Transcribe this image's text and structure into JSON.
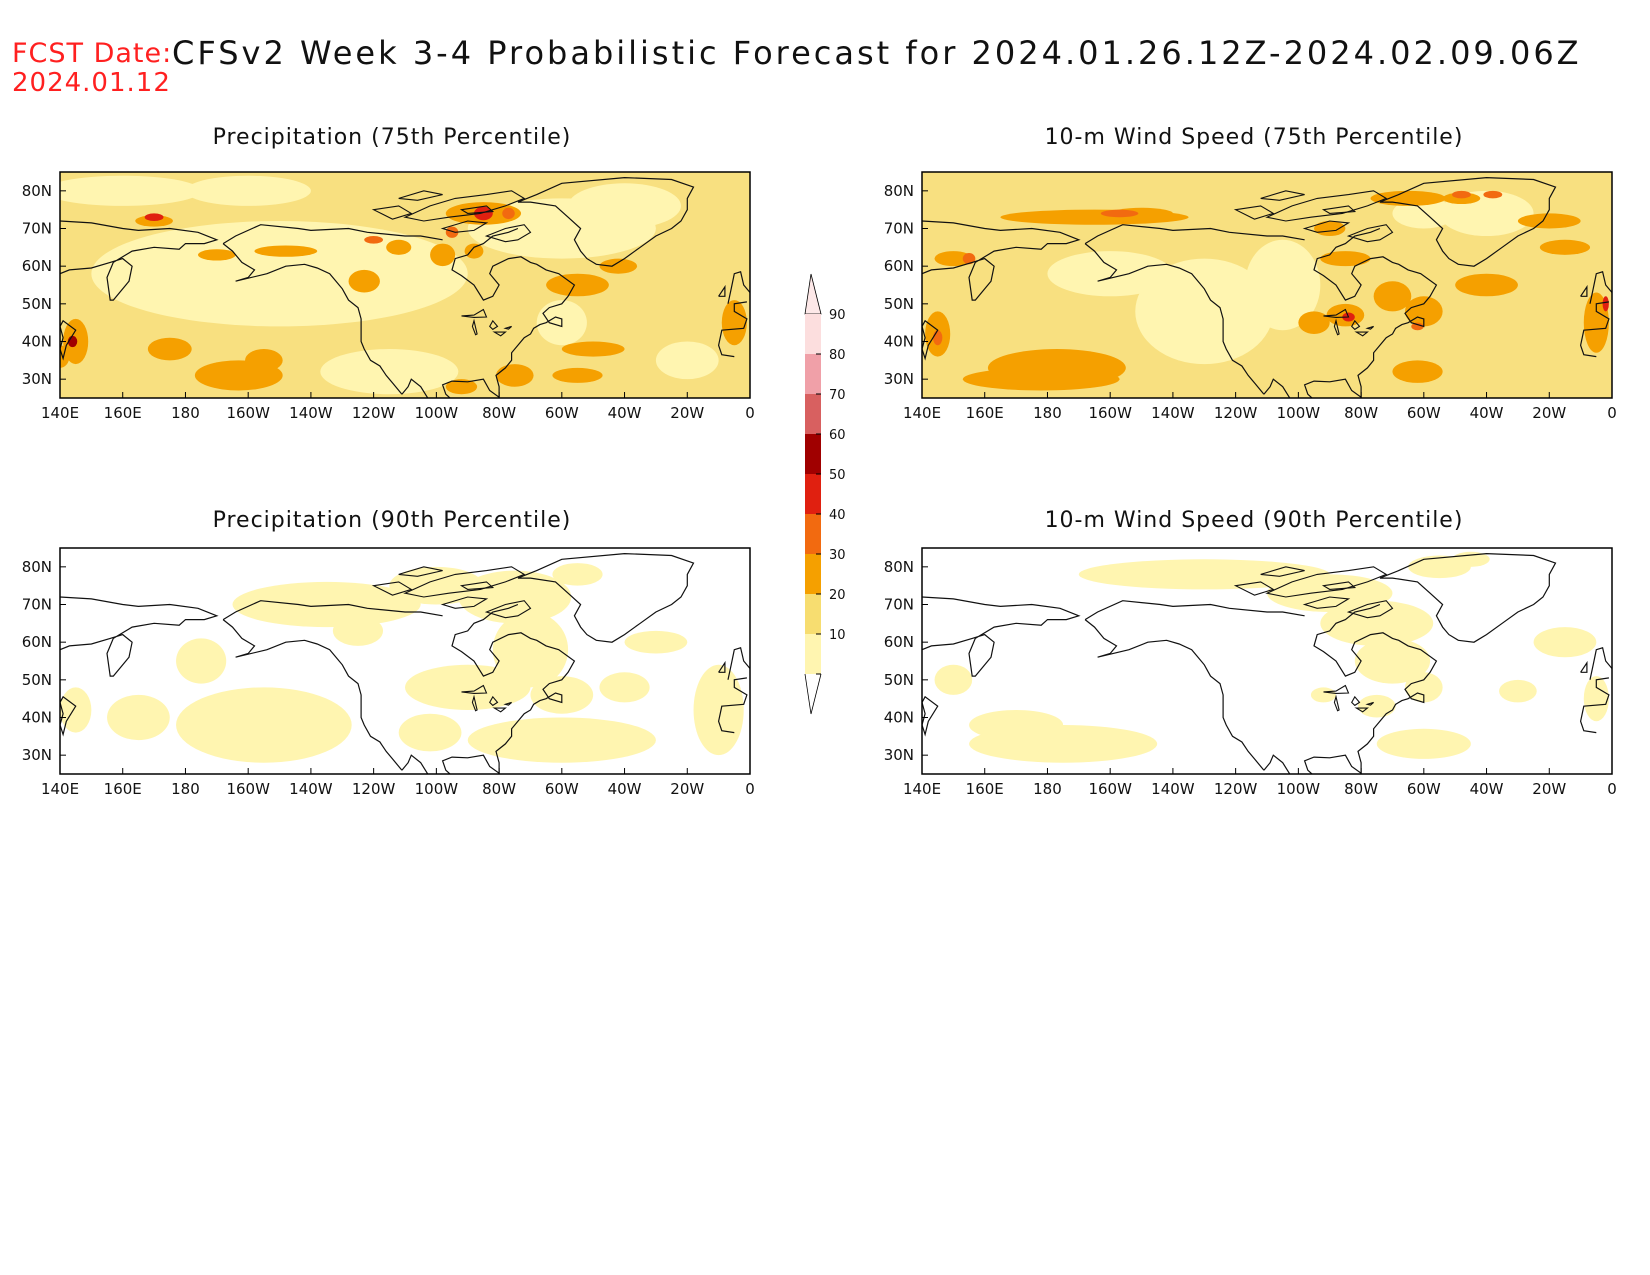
{
  "header": {
    "fcst_label": "FCST Date:",
    "fcst_date": "2024.01.12",
    "title": "CFSv2 Week 3-4 Probabilistic Forecast for 2024.01.26.12Z-2024.02.09.06Z"
  },
  "axes": {
    "lon_labels": [
      "140E",
      "160E",
      "180",
      "160W",
      "140W",
      "120W",
      "100W",
      "80W",
      "60W",
      "40W",
      "20W",
      "0"
    ],
    "lat_labels": [
      "80N",
      "70N",
      "60N",
      "50N",
      "40N",
      "30N"
    ]
  },
  "panels": [
    {
      "id": "precip75",
      "title": "Precipitation (75th Percentile)"
    },
    {
      "id": "wind75",
      "title": "10-m Wind Speed (75th Percentile)"
    },
    {
      "id": "precip90",
      "title": "Precipitation (90th Percentile)"
    },
    {
      "id": "wind90",
      "title": "10-m Wind Speed (90th Percentile)"
    }
  ],
  "colorbar": {
    "levels": [
      "90",
      "80",
      "70",
      "60",
      "50",
      "40",
      "30",
      "20",
      "10"
    ],
    "colors": [
      "#fcdede",
      "#f0a0a8",
      "#d86060",
      "#a00000",
      "#e02010",
      "#f26a10",
      "#f5a000",
      "#f7dd70",
      "#fff5b0"
    ]
  },
  "palette": {
    "light_yellow": "#fff5b0",
    "yellow": "#f8e080",
    "orange": "#f5a000",
    "dark_orange": "#f26a10",
    "red": "#e02010",
    "dark_red": "#a00000"
  }
}
